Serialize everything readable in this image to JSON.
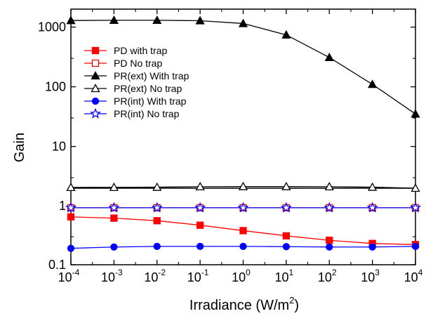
{
  "chart_data": {
    "type": "line",
    "title": "",
    "xlabel": "Irradiance (W/m",
    "xlabel_sup": "2",
    "xlabel_suffix": ")",
    "ylabel": "Gain",
    "xscale": "log",
    "yscale": "log",
    "xlim": [
      0.0001,
      10000
    ],
    "ylim_upper_panel": [
      2,
      2000
    ],
    "ylim_lower_panel": [
      0.1,
      2
    ],
    "broken_y_axis": true,
    "x": [
      0.0001,
      0.001,
      0.01,
      0.1,
      1,
      10,
      100,
      1000,
      10000
    ],
    "x_tick_labels": [
      {
        "base": "10",
        "exp": "-4"
      },
      {
        "base": "10",
        "exp": "-3"
      },
      {
        "base": "10",
        "exp": "-2"
      },
      {
        "base": "10",
        "exp": "-1"
      },
      {
        "base": "10",
        "exp": "0"
      },
      {
        "base": "10",
        "exp": "1"
      },
      {
        "base": "10",
        "exp": "2"
      },
      {
        "base": "10",
        "exp": "3"
      },
      {
        "base": "10",
        "exp": "4"
      }
    ],
    "y_tick_labels_upper": [
      {
        "value": 10,
        "label": "10"
      },
      {
        "value": 100,
        "label": "100"
      },
      {
        "value": 1000,
        "label": "1000"
      }
    ],
    "y_tick_labels_lower": [
      {
        "value": 0.1,
        "label": "0.1"
      },
      {
        "value": 1,
        "label": "1"
      }
    ],
    "grid": false,
    "legend_position": "upper-left",
    "series": [
      {
        "name": "PD with trap",
        "color": "#ff0000",
        "marker": "square",
        "filled": true,
        "values": [
          0.65,
          0.62,
          0.56,
          0.47,
          0.38,
          0.31,
          0.26,
          0.23,
          0.22
        ]
      },
      {
        "name": "PD No trap",
        "color": "#ff0000",
        "marker": "square",
        "filled": false,
        "values": [
          0.93,
          0.93,
          0.93,
          0.93,
          0.93,
          0.93,
          0.93,
          0.93,
          0.93
        ]
      },
      {
        "name": "PR(ext) With trap",
        "color": "#000000",
        "marker": "triangle",
        "filled": true,
        "values": [
          1290,
          1300,
          1300,
          1280,
          1150,
          740,
          310,
          110,
          35
        ]
      },
      {
        "name": "PR(ext) No trap",
        "color": "#000000",
        "marker": "triangle",
        "filled": false,
        "values": [
          2.06,
          2.07,
          2.08,
          2.12,
          2.13,
          2.13,
          2.12,
          2.08,
          2.0
        ]
      },
      {
        "name": "PR(int) With trap",
        "color": "#0000ff",
        "marker": "circle",
        "filled": true,
        "values": [
          0.19,
          0.2,
          0.205,
          0.205,
          0.205,
          0.203,
          0.2,
          0.2,
          0.205
        ]
      },
      {
        "name": "PR(int) No trap",
        "color": "#0000ff",
        "marker": "star",
        "filled": false,
        "values": [
          0.93,
          0.93,
          0.93,
          0.93,
          0.93,
          0.93,
          0.93,
          0.93,
          0.93
        ]
      }
    ]
  }
}
